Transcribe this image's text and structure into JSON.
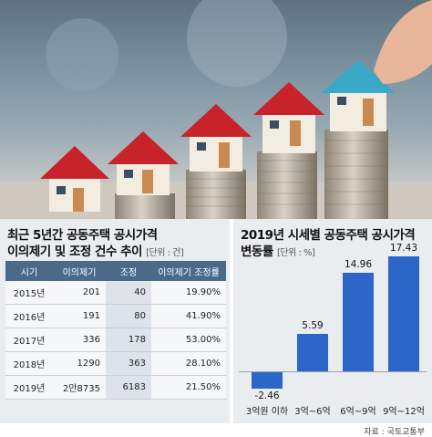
{
  "left_panel": {
    "title_line1": "최근 5년간 공동주택 공시가격",
    "title_line2": "이의제기 및 조정 건수 추이",
    "unit": "[단위 : 건]",
    "table": {
      "headers": [
        "시기",
        "이의제기",
        "조정",
        "이의제기 조정률"
      ],
      "rows": [
        [
          "2015년",
          "201",
          "40",
          "19.90%"
        ],
        [
          "2016년",
          "191",
          "80",
          "41.90%"
        ],
        [
          "2017년",
          "336",
          "178",
          "53.00%"
        ],
        [
          "2018년",
          "1290",
          "363",
          "28.10%"
        ],
        [
          "2019년",
          "2만8735",
          "6183",
          "21.50%"
        ]
      ]
    }
  },
  "chart_data": {
    "type": "bar",
    "title": "2019년 시세별 공동주택 공시가격 변동률",
    "unit": "[단위 : %]",
    "categories": [
      "3억원 이하",
      "3억~6억",
      "6억~9억",
      "9억~12억"
    ],
    "values": [
      -2.46,
      5.59,
      14.96,
      17.43
    ],
    "value_labels": [
      "-2.46",
      "5.59",
      "14.96",
      "17.43"
    ],
    "ylim": [
      -2.46,
      17.43
    ],
    "colors": {
      "positive": "#2c66c8",
      "negative": "#2c66c8"
    },
    "grid": false,
    "legend": "none"
  },
  "source": "자료 : 국토교통부",
  "colors": {
    "header_bg": "#4b6a8a",
    "panel_bg": "#e9edf0"
  }
}
